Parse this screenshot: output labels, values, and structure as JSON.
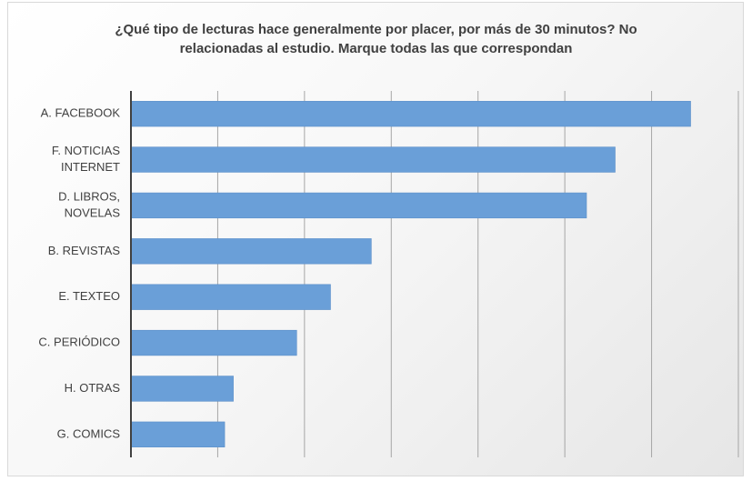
{
  "chart_data": {
    "type": "bar",
    "orientation": "horizontal",
    "title_lines": [
      "¿Qué tipo de lecturas hace generalmente por placer, por más de 30 minutos? No",
      "relacionadas al estudio. Marque todas las que correspondan"
    ],
    "categories": [
      [
        "A. FACEBOOK"
      ],
      [
        "F. NOTICIAS",
        "INTERNET"
      ],
      [
        "D. LIBROS,",
        "NOVELAS"
      ],
      [
        "B. REVISTAS"
      ],
      [
        "E. TEXTEO"
      ],
      [
        "C. PERIÓDICO"
      ],
      [
        "H. OTRAS"
      ],
      [
        "G. COMICS"
      ]
    ],
    "values": [
      64.5,
      55.8,
      52.5,
      27.7,
      23,
      19.1,
      11.8,
      10.8
    ],
    "xlim": [
      0,
      70
    ],
    "x_gridline_step": 10,
    "grid": true,
    "x_tick_labels_visible": false,
    "bar_color": "#6a9fd8",
    "bar_border_color": "#5b8fc9"
  }
}
